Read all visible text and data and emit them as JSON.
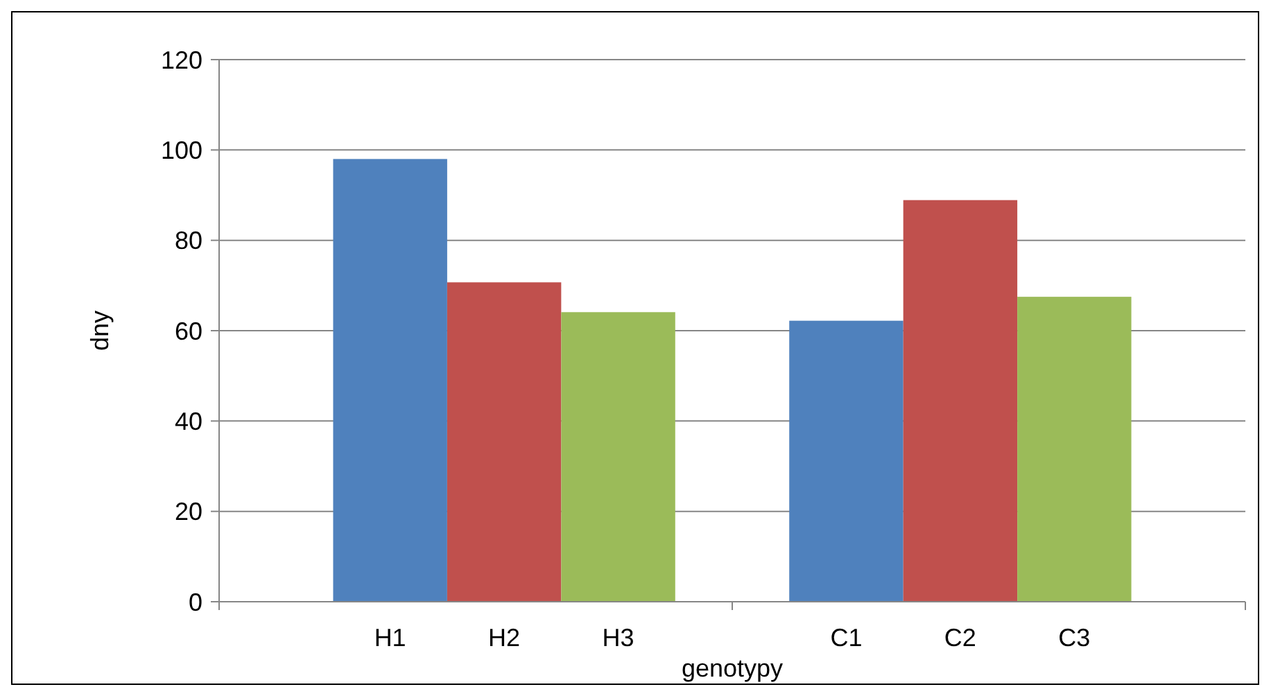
{
  "chart_data": {
    "type": "bar",
    "xlabel": "genotypy",
    "ylabel": "dny",
    "categories": [
      "H1",
      "H2",
      "H3",
      null,
      "C1",
      "C2",
      "C3"
    ],
    "values": [
      98,
      70.7,
      64.1,
      null,
      62.2,
      88.9,
      67.5
    ],
    "colors": [
      "#4f81bd",
      "#c0504d",
      "#9bbb59",
      null,
      "#4f81bd",
      "#c0504d",
      "#9bbb59"
    ],
    "ylim": [
      0,
      120
    ],
    "yticks": [
      0,
      20,
      40,
      60,
      80,
      100,
      120
    ],
    "grid": "y"
  }
}
